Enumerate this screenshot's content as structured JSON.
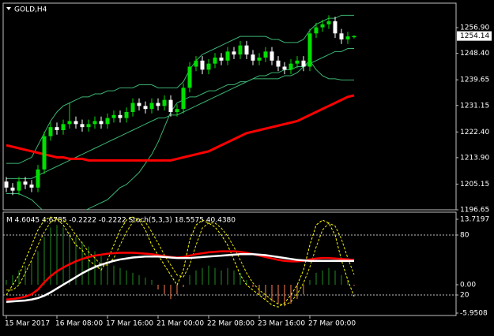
{
  "chart_data": [
    {
      "type": "candlestick",
      "title": "GOLD,H4",
      "categories": [
        "15 Mar 2017",
        null,
        null,
        null,
        null,
        null,
        null,
        null,
        "16 Mar 08:00",
        null,
        null,
        null,
        null,
        null,
        null,
        null,
        "17 Mar 16:00",
        null,
        null,
        null,
        null,
        null,
        null,
        null,
        "21 Mar 00:00",
        null,
        null,
        null,
        null,
        null,
        null,
        null,
        "22 Mar 08:00",
        null,
        null,
        null,
        null,
        null,
        null,
        null,
        "23 Mar 16:00",
        null,
        null,
        null,
        null,
        null,
        null,
        null,
        "27 Mar 00:00",
        null,
        null,
        null,
        null,
        null,
        null,
        null
      ],
      "open": [
        1206,
        1204,
        1203,
        1206,
        1205,
        1204,
        1210,
        1221,
        1224,
        1223,
        1225,
        1226,
        1225,
        1224,
        1225,
        1226,
        1225,
        1227,
        1228,
        1227,
        1229,
        1232,
        1231,
        1230,
        1232,
        1231,
        1233,
        1229,
        1230,
        1237,
        1244,
        1246,
        1243,
        1245,
        1247,
        1246,
        1249,
        1248,
        1251,
        1248,
        1246,
        1247,
        1249,
        1246,
        1244,
        1243,
        1245,
        1246,
        1244,
        1255,
        1257,
        1258,
        1259,
        1255,
        1253,
        1253.74
      ],
      "high": [
        1207.5,
        1205.5,
        1207.5,
        1207.5,
        1206.5,
        1211.5,
        1222.5,
        1225.5,
        1225.5,
        1226.5,
        1232,
        1227.5,
        1226.5,
        1226.5,
        1227.5,
        1227.5,
        1228.5,
        1229.5,
        1229.5,
        1230.5,
        1233.5,
        1233.5,
        1232.5,
        1233.5,
        1233.5,
        1234.5,
        1234.5,
        1231.5,
        1238.5,
        1245.5,
        1247.5,
        1247.5,
        1246.5,
        1248.5,
        1248.5,
        1250.5,
        1250.5,
        1252.5,
        1252.5,
        1249.5,
        1248.5,
        1250.5,
        1250.5,
        1247.5,
        1245.5,
        1246.5,
        1247.5,
        1247.5,
        1256.5,
        1258.5,
        1259.5,
        1261,
        1260.5,
        1256.5,
        1255.5,
        1254.34
      ],
      "low": [
        1202.5,
        1201.5,
        1201.5,
        1203.5,
        1202.5,
        1202.5,
        1208.5,
        1219.5,
        1221.5,
        1221.5,
        1223.5,
        1223.5,
        1222.5,
        1222.5,
        1223.5,
        1223.5,
        1223.5,
        1225.5,
        1225.5,
        1225.5,
        1227.5,
        1229.5,
        1228.5,
        1228.5,
        1229.5,
        1229.5,
        1227.5,
        1227.5,
        1228.5,
        1235.5,
        1242.5,
        1241.5,
        1241.5,
        1243.5,
        1244.5,
        1244.5,
        1246.5,
        1246.5,
        1246.5,
        1244.5,
        1244.5,
        1245.5,
        1244.5,
        1242.5,
        1241.5,
        1241.5,
        1243.5,
        1242.5,
        1242.5,
        1253.5,
        1255.5,
        1256.5,
        1253.5,
        1251.5,
        1251.5,
        1253.33
      ],
      "close": [
        1204,
        1203,
        1206,
        1205,
        1204,
        1210,
        1221,
        1224,
        1223,
        1225,
        1226,
        1225,
        1224,
        1225,
        1226,
        1225,
        1227,
        1228,
        1227,
        1229,
        1232,
        1231,
        1230,
        1232,
        1231,
        1233,
        1229,
        1230,
        1237,
        1244,
        1246,
        1243,
        1245,
        1247,
        1246,
        1249,
        1248,
        1251,
        1248,
        1246,
        1247,
        1249,
        1246,
        1244,
        1243,
        1245,
        1246,
        1244,
        1255,
        1257,
        1258,
        1259,
        1255,
        1253,
        1254,
        1254.14
      ],
      "up_color": "#00e000",
      "down_color": "#ffffff",
      "bands": {
        "color": "#3cb371",
        "upper": [
          1212,
          1212,
          1212,
          1213,
          1214,
          1218,
          1222,
          1226,
          1229,
          1231,
          1232,
          1233,
          1234,
          1234,
          1235,
          1235,
          1236,
          1236,
          1237,
          1237,
          1237,
          1238,
          1238,
          1238,
          1237,
          1237,
          1237,
          1237,
          1239,
          1243,
          1246,
          1248,
          1249,
          1250,
          1251,
          1252,
          1253,
          1254,
          1254,
          1254,
          1254,
          1254,
          1253,
          1253,
          1252,
          1252,
          1252,
          1253,
          1256,
          1258,
          1259,
          1260,
          1260,
          1261,
          1261,
          1261
        ],
        "middle": [
          1207,
          1207,
          1207,
          1207,
          1207,
          1208,
          1209,
          1210,
          1211,
          1212,
          1213,
          1214,
          1215,
          1216,
          1217,
          1218,
          1219,
          1220,
          1221,
          1222,
          1223,
          1224,
          1225,
          1226,
          1227,
          1227,
          1228,
          1228,
          1229,
          1230,
          1231,
          1232,
          1233,
          1234,
          1235,
          1236,
          1237,
          1238,
          1239,
          1240,
          1241,
          1241,
          1242,
          1242,
          1243,
          1243,
          1244,
          1244,
          1245,
          1246,
          1247,
          1248,
          1249,
          1249,
          1250,
          1250
        ],
        "lower": [
          1202,
          1202,
          1202,
          1201,
          1200,
          1198,
          1196,
          1194,
          1193,
          1193,
          1194,
          1195,
          1196,
          1197,
          1198,
          1199,
          1200,
          1202,
          1204,
          1205,
          1207,
          1209,
          1212,
          1215,
          1219,
          1224,
          1229,
          1232,
          1233,
          1234,
          1234,
          1235,
          1236,
          1236,
          1237,
          1238,
          1238,
          1239,
          1239,
          1240,
          1240,
          1240,
          1240,
          1240,
          1241,
          1241,
          1242,
          1244,
          1246,
          1243,
          1241,
          1240,
          1240,
          1239.6,
          1239.6,
          1239.6
        ]
      },
      "ma": {
        "color": "#ff0000",
        "values": [
          1218,
          1217.5,
          1217,
          1216.5,
          1216,
          1215.5,
          1215,
          1214.5,
          1214,
          1214,
          1213.5,
          1213.5,
          1213.5,
          1213,
          1213,
          1213,
          1213,
          1213,
          1213,
          1213,
          1213,
          1213,
          1213,
          1213,
          1213,
          1213,
          1213,
          1213.5,
          1214,
          1214.5,
          1215,
          1215.5,
          1216,
          1217,
          1218,
          1219,
          1220,
          1221,
          1222,
          1222.5,
          1223,
          1223.5,
          1224,
          1224.5,
          1225,
          1225.5,
          1226,
          1227,
          1228,
          1229,
          1230,
          1231,
          1232,
          1233,
          1234,
          1234.5
        ]
      },
      "ylim": [
        1196.65,
        1265.0
      ],
      "yticks": [
        {
          "value": 1256.9,
          "label": "1256.90"
        },
        {
          "value": 1248.4,
          "label": "1248.40"
        },
        {
          "value": 1239.65,
          "label": "1239.65"
        },
        {
          "value": 1231.15,
          "label": "1231.15"
        },
        {
          "value": 1222.4,
          "label": "1222.40"
        },
        {
          "value": 1213.9,
          "label": "1213.90"
        },
        {
          "value": 1205.15,
          "label": "1205.15"
        },
        {
          "value": 1196.65,
          "label": "1196.65"
        }
      ]
    },
    {
      "type": "indicator",
      "title": "M 4.6045 4.6785 -0.2222 -0.2222  Stoch(5,3,3) 18.5575 40.4380",
      "histogram": {
        "color": "#228b22",
        "negative_color": "#ff7f50",
        "values": [
          1,
          2,
          3,
          4,
          5,
          7,
          10,
          12,
          12.5,
          12,
          11,
          10,
          9,
          8,
          7,
          6,
          5,
          4,
          3.5,
          3,
          2.5,
          2,
          1.5,
          1,
          -1,
          -2,
          -3,
          -2,
          -0.5,
          2,
          3,
          3.5,
          4,
          3.5,
          3,
          3.5,
          3,
          2.5,
          1,
          -0.5,
          -2,
          -3,
          -3.5,
          -4,
          -4.5,
          -4,
          -3,
          -2,
          1,
          2.5,
          3,
          3.5,
          3,
          2,
          1,
          -0.2222
        ]
      },
      "lines": [
        {
          "color": "#ff0000",
          "values": [
            -3.1,
            -3,
            -2.8,
            -2.5,
            -2,
            -1,
            0.5,
            1.8,
            2.8,
            3.6,
            4.3,
            4.9,
            5.4,
            5.8,
            6.1,
            6.3,
            6.5,
            6.6,
            6.7,
            6.7,
            6.7,
            6.6,
            6.5,
            6.4,
            6.2,
            6,
            5.8,
            5.7,
            5.8,
            6.1,
            6.4,
            6.6,
            6.8,
            6.9,
            7,
            7,
            7,
            6.9,
            6.7,
            6.4,
            6.1,
            5.8,
            5.5,
            5.2,
            5,
            4.9,
            4.9,
            5,
            5.3,
            5.5,
            5.6,
            5.6,
            5.5,
            5.4,
            5.3,
            5.2
          ]
        },
        {
          "color": "#ffffff",
          "values": [
            -3.6,
            -3.5,
            -3.4,
            -3.3,
            -3.1,
            -2.8,
            -2.3,
            -1.6,
            -0.8,
            0,
            0.8,
            1.6,
            2.4,
            3.1,
            3.7,
            4.2,
            4.6,
            5,
            5.3,
            5.5,
            5.7,
            5.8,
            5.9,
            5.9,
            5.9,
            5.8,
            5.7,
            5.6,
            5.6,
            5.6,
            5.7,
            5.8,
            5.9,
            6,
            6.1,
            6.2,
            6.3,
            6.4,
            6.4,
            6.4,
            6.3,
            6.2,
            6,
            5.8,
            5.6,
            5.4,
            5.2,
            5.1,
            5,
            5,
            5,
            5,
            5,
            5,
            5,
            5
          ]
        }
      ],
      "stoch": [
        {
          "color": "#ffff00",
          "axis": "y2",
          "values": [
            20,
            30,
            40,
            55,
            70,
            85,
            95,
            98,
            96,
            90,
            80,
            70,
            65,
            55,
            50,
            45,
            55,
            70,
            85,
            95,
            98,
            95,
            85,
            70,
            60,
            50,
            40,
            30,
            45,
            75,
            90,
            95,
            92,
            88,
            80,
            70,
            55,
            40,
            30,
            25,
            20,
            15,
            10,
            8,
            12,
            20,
            30,
            45,
            70,
            90,
            95,
            92,
            80,
            55,
            35,
            18.5575
          ]
        },
        {
          "color": "#e6e600",
          "axis": "y2",
          "values": [
            25,
            25,
            30,
            42,
            55,
            70,
            83,
            93,
            96,
            95,
            89,
            80,
            72,
            63,
            57,
            50,
            50,
            57,
            70,
            83,
            93,
            96,
            93,
            83,
            72,
            60,
            50,
            40,
            38,
            50,
            70,
            87,
            92,
            92,
            87,
            79,
            68,
            55,
            42,
            32,
            25,
            20,
            15,
            11,
            10,
            13,
            21,
            32,
            48,
            68,
            85,
            92,
            89,
            76,
            57,
            40.438
          ]
        }
      ],
      "ylim": [
        -6.45,
        15.04
      ],
      "yticks": [
        13.7197,
        {
          "value": 0,
          "label": "0.00"
        },
        -5.9508
      ],
      "y2lim": [
        -0.5,
        102.1
      ],
      "y2ticks": [
        80,
        20
      ]
    }
  ]
}
